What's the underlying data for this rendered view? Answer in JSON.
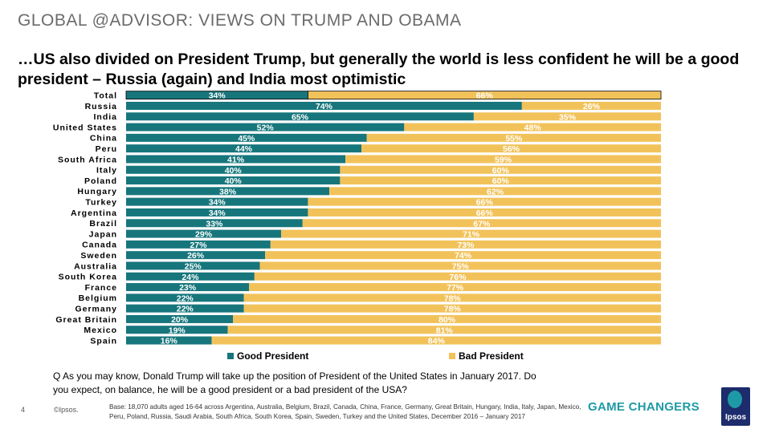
{
  "header": {
    "title": "GLOBAL @ADVISOR: VIEWS ON TRUMP AND OBAMA"
  },
  "subtitle": "…US also divided on President Trump, but generally the world is less confident he will be a good president – Russia (again) and India most optimistic",
  "chart_data": {
    "type": "bar",
    "orientation": "horizontal",
    "stacked": true,
    "percent_suffix": "%",
    "categories": [
      "Total",
      "Russia",
      "India",
      "United States",
      "China",
      "Peru",
      "South Africa",
      "Italy",
      "Poland",
      "Hungary",
      "Turkey",
      "Argentina",
      "Brazil",
      "Japan",
      "Canada",
      "Sweden",
      "Australia",
      "South Korea",
      "France",
      "Belgium",
      "Germany",
      "Great Britain",
      "Mexico",
      "Spain"
    ],
    "series": [
      {
        "name": "Good President",
        "color": "#16767c",
        "values": [
          34,
          74,
          65,
          52,
          45,
          44,
          41,
          40,
          40,
          38,
          34,
          34,
          33,
          29,
          27,
          26,
          25,
          24,
          23,
          22,
          22,
          20,
          19,
          16
        ]
      },
      {
        "name": "Bad President",
        "color": "#f2c25a",
        "values": [
          66,
          26,
          35,
          48,
          55,
          56,
          59,
          60,
          60,
          62,
          66,
          66,
          67,
          71,
          73,
          74,
          75,
          76,
          77,
          78,
          78,
          80,
          81,
          84
        ]
      }
    ],
    "xlim": [
      0,
      100
    ],
    "legend_position": "bottom"
  },
  "legend": {
    "good_label": "Good President",
    "bad_label": "Bad President"
  },
  "question": "Q As you may know, Donald Trump will take up the position of President of the United States in January 2017. Do you expect, on balance, he will be a good president or a bad president of the USA?",
  "footer": {
    "page_number": "4",
    "copyright": "©Ipsos.",
    "base_note": "Base: 18,070 adults aged 16-64 across Argentina, Australia, Belgium, Brazil, Canada, China, France, Germany, Great Britain, Hungary, India, Italy, Japan, Mexico, Peru, Poland, Russia, Saudi Arabia, South Africa, South Korea, Spain, Sweden, Turkey and the United States, December 2016 – January 2017",
    "tagline": "GAME CHANGERS",
    "logo_text": "Ipsos"
  },
  "colors": {
    "teal": "#16767c",
    "yellow": "#f2c25a",
    "accent": "#1e9aa6",
    "logo_bg": "#1c2c6c"
  }
}
